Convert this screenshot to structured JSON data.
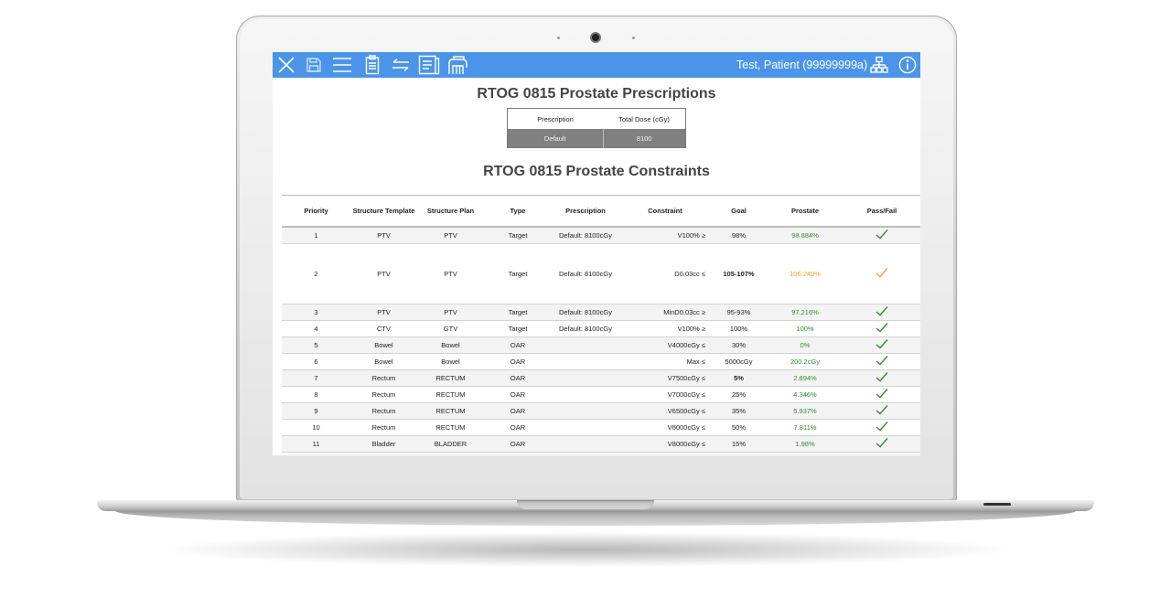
{
  "app": {
    "patient": "Test, Patient (99999999a)",
    "accent_color": "#4a95ea",
    "toolbar_icons": [
      "close-icon",
      "save-icon",
      "menu-icon",
      "clipboard-icon",
      "swap-icon",
      "document-icon",
      "hand-icon",
      "network-icon",
      "info-icon"
    ]
  },
  "prescriptions": {
    "title": "RTOG 0815 Prostate Prescriptions",
    "headers": [
      "Prescription",
      "Total Dose (cGy)"
    ],
    "rows": [
      [
        "Default",
        "8100"
      ]
    ]
  },
  "constraints": {
    "title": "RTOG 0815 Prostate Constraints",
    "headers": [
      "Priority",
      "Structure Template",
      "Structure Plan",
      "Type",
      "Prescription",
      "Constraint",
      "Goal",
      "Prostate",
      "Pass/Fail"
    ],
    "pass_color": "#2e8f2e",
    "warn_color": "#f0a030",
    "rows": [
      {
        "priority": "1",
        "template": "PTV",
        "plan": "PTV",
        "type": "Target",
        "prescription": "Default: 8100cGy",
        "constraint": "V100% ≥",
        "goal": "98%",
        "goal_bold": false,
        "value": "98.884%",
        "status": "pass"
      },
      {
        "priority": "2",
        "template": "PTV",
        "plan": "PTV",
        "type": "Target",
        "prescription": "Default: 8100cGy",
        "constraint": "D0.03cc ≤",
        "goal": "105-107%",
        "goal_bold": true,
        "value": "106.249%",
        "status": "warn"
      },
      {
        "priority": "3",
        "template": "PTV",
        "plan": "PTV",
        "type": "Target",
        "prescription": "Default: 8100cGy",
        "constraint": "MinD0.03cc ≥",
        "goal": "95-93%",
        "goal_bold": false,
        "value": "97.216%",
        "status": "pass"
      },
      {
        "priority": "4",
        "template": "CTV",
        "plan": "GTV",
        "type": "Target",
        "prescription": "Default: 8100cGy",
        "constraint": "V100% ≥",
        "goal": "100%",
        "goal_bold": false,
        "value": "100%",
        "status": "pass"
      },
      {
        "priority": "5",
        "template": "Bowel",
        "plan": "Bowel",
        "type": "OAR",
        "prescription": "",
        "constraint": "V4000cGy ≤",
        "goal": "30%",
        "goal_bold": false,
        "value": "0%",
        "status": "pass"
      },
      {
        "priority": "6",
        "template": "Bowel",
        "plan": "Bowel",
        "type": "OAR",
        "prescription": "",
        "constraint": "Max ≤",
        "goal": "5000cGy",
        "goal_bold": false,
        "value": "200.2cGy",
        "status": "pass"
      },
      {
        "priority": "7",
        "template": "Rectum",
        "plan": "RECTUM",
        "type": "OAR",
        "prescription": "",
        "constraint": "V7500cGy ≤",
        "goal": "5%",
        "goal_bold": true,
        "value": "2.894%",
        "status": "pass"
      },
      {
        "priority": "8",
        "template": "Rectum",
        "plan": "RECTUM",
        "type": "OAR",
        "prescription": "",
        "constraint": "V7000cGy ≤",
        "goal": "25%",
        "goal_bold": false,
        "value": "4.346%",
        "status": "pass"
      },
      {
        "priority": "9",
        "template": "Rectum",
        "plan": "RECTUM",
        "type": "OAR",
        "prescription": "",
        "constraint": "V6500cGy ≤",
        "goal": "35%",
        "goal_bold": false,
        "value": "5.937%",
        "status": "pass"
      },
      {
        "priority": "10",
        "template": "Rectum",
        "plan": "RECTUM",
        "type": "OAR",
        "prescription": "",
        "constraint": "V6000cGy ≤",
        "goal": "50%",
        "goal_bold": false,
        "value": "7.811%",
        "status": "pass"
      },
      {
        "priority": "11",
        "template": "Bladder",
        "plan": "BLADDER",
        "type": "OAR",
        "prescription": "",
        "constraint": "V8000cGy ≤",
        "goal": "15%",
        "goal_bold": false,
        "value": "1.98%",
        "status": "pass"
      }
    ]
  }
}
